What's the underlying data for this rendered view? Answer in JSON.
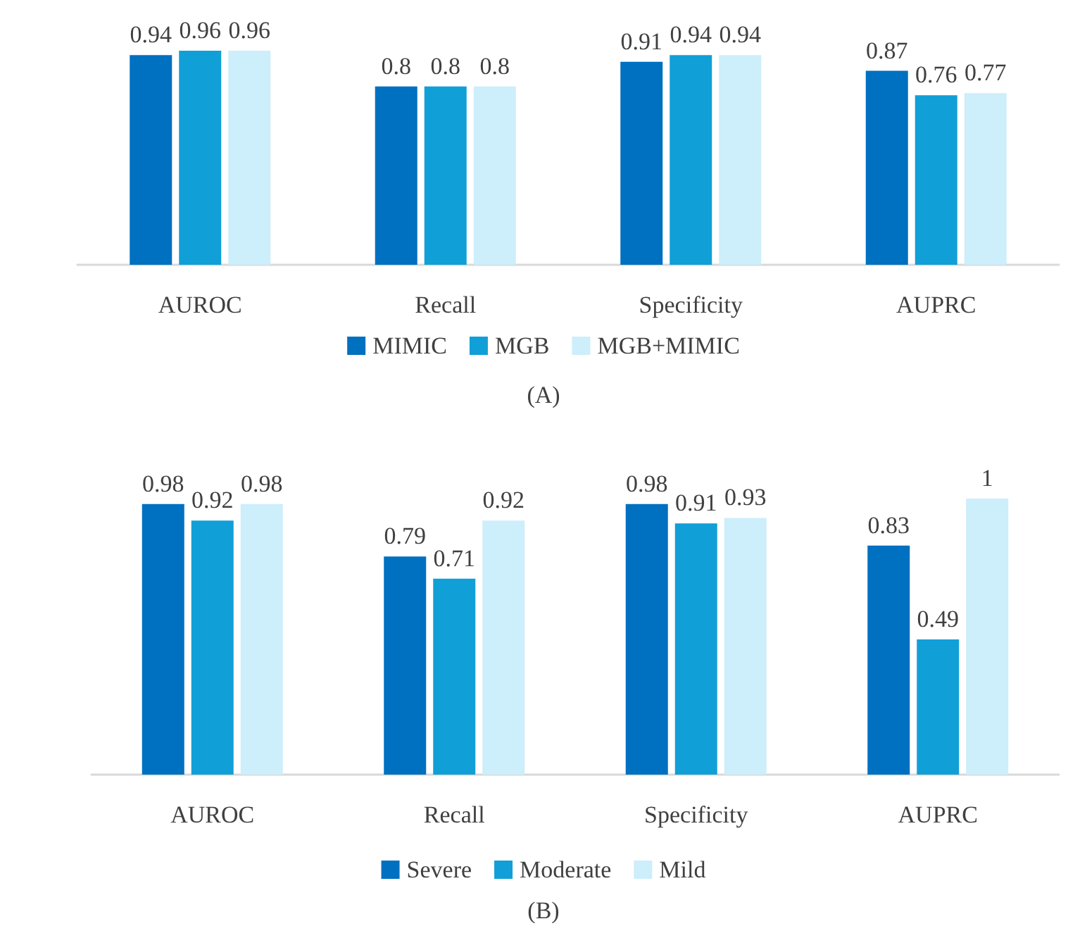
{
  "chart_data": [
    {
      "type": "bar",
      "categories": [
        "AUROC",
        "Recall",
        "Specificity",
        "AUPRC"
      ],
      "data_labels": true,
      "legend": "bottom",
      "grid": false,
      "annotations": [
        "(A)"
      ],
      "series": [
        {
          "name": "MIMIC",
          "color": "#0070c0",
          "values": [
            0.94,
            0.8,
            0.91,
            0.87
          ]
        },
        {
          "name": "MGB",
          "color": "#119fd8",
          "values": [
            0.96,
            0.8,
            0.94,
            0.76
          ]
        },
        {
          "name": "MGB+MIMIC",
          "color": "#cdeefb",
          "values": [
            0.96,
            0.8,
            0.94,
            0.77
          ]
        }
      ]
    },
    {
      "type": "bar",
      "categories": [
        "AUROC",
        "Recall",
        "Specificity",
        "AUPRC"
      ],
      "data_labels": true,
      "legend": "bottom",
      "grid": false,
      "annotations": [
        "(B)"
      ],
      "series": [
        {
          "name": "Severe",
          "color": "#0070c0",
          "values": [
            0.98,
            0.79,
            0.98,
            0.83
          ]
        },
        {
          "name": "Moderate",
          "color": "#119fd8",
          "values": [
            0.92,
            0.71,
            0.91,
            0.49
          ]
        },
        {
          "name": "Mild",
          "color": "#cdeefb",
          "values": [
            0.98,
            0.92,
            0.93,
            1
          ]
        }
      ]
    }
  ]
}
